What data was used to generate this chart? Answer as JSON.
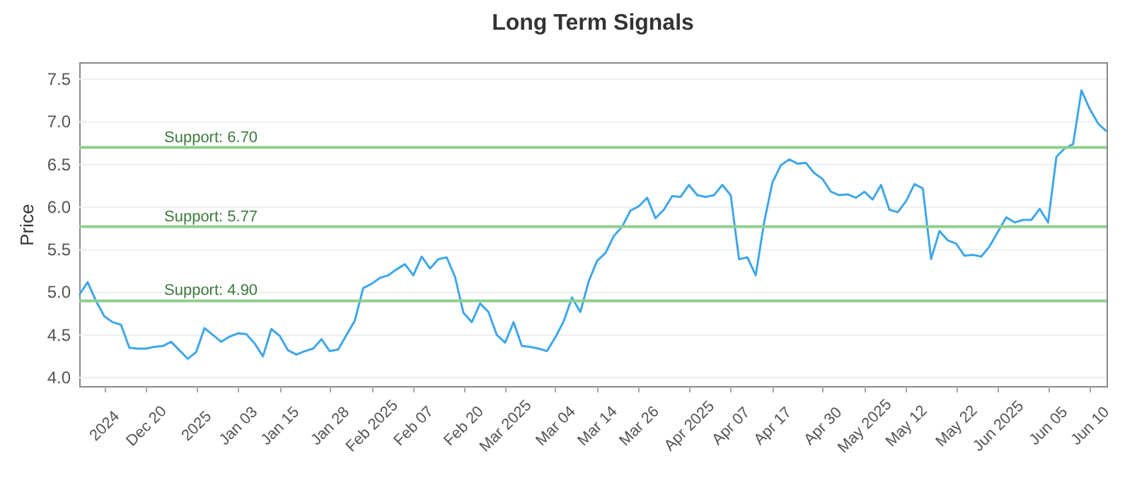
{
  "chart_data": {
    "type": "line",
    "title": "Long Term Signals",
    "ylabel": "Price",
    "categories": [
      null,
      null,
      null,
      "2024",
      null,
      null,
      null,
      null,
      "Dec 20",
      null,
      null,
      null,
      null,
      null,
      "2025",
      null,
      null,
      null,
      null,
      "Jan 03",
      null,
      null,
      null,
      null,
      "Jan 15",
      null,
      null,
      null,
      null,
      null,
      "Jan 28",
      null,
      null,
      null,
      null,
      "Feb 2025",
      null,
      null,
      null,
      null,
      "Feb 07",
      null,
      null,
      null,
      null,
      null,
      "Feb 20",
      null,
      null,
      null,
      null,
      "Mar 2025",
      null,
      null,
      null,
      null,
      null,
      "Mar 04",
      null,
      null,
      null,
      null,
      "Mar 14",
      null,
      null,
      null,
      null,
      "Mar 26",
      null,
      null,
      null,
      null,
      null,
      "Apr 2025",
      null,
      null,
      null,
      null,
      "Apr 07",
      null,
      null,
      null,
      null,
      "Apr 17",
      null,
      null,
      null,
      null,
      null,
      "Apr 30",
      null,
      null,
      null,
      null,
      "May 2025",
      null,
      null,
      null,
      null,
      "May 12",
      null,
      null,
      null,
      null,
      null,
      "May 22",
      null,
      null,
      null,
      null,
      "Jun 2025",
      null,
      null,
      null,
      null,
      null,
      "Jun 05",
      null,
      null,
      null,
      null,
      "Jun 10",
      null,
      null
    ],
    "series": [
      {
        "color": "#3ea6ea",
        "values": [
          4.97,
          5.12,
          4.9,
          4.72,
          4.65,
          4.62,
          4.35,
          4.34,
          4.34,
          4.36,
          4.37,
          4.42,
          4.32,
          4.22,
          4.3,
          4.58,
          4.5,
          4.42,
          4.48,
          4.52,
          4.51,
          4.4,
          4.25,
          4.57,
          4.49,
          4.32,
          4.27,
          4.31,
          4.34,
          4.45,
          4.31,
          4.33,
          4.5,
          4.67,
          5.05,
          5.1,
          5.17,
          5.2,
          5.27,
          5.33,
          5.2,
          5.42,
          5.28,
          5.39,
          5.41,
          5.18,
          4.76,
          4.65,
          4.87,
          4.77,
          4.5,
          4.41,
          4.65,
          4.37,
          4.36,
          4.34,
          4.31,
          4.47,
          4.66,
          4.94,
          4.77,
          5.13,
          5.37,
          5.46,
          5.66,
          5.77,
          5.96,
          6.01,
          6.11,
          5.87,
          5.97,
          6.13,
          6.12,
          6.26,
          6.14,
          6.12,
          6.14,
          6.26,
          6.14,
          5.39,
          5.41,
          5.2,
          5.82,
          6.29,
          6.49,
          6.56,
          6.51,
          6.52,
          6.4,
          6.33,
          6.18,
          6.14,
          6.15,
          6.11,
          6.18,
          6.09,
          6.26,
          5.97,
          5.94,
          6.07,
          6.27,
          6.22,
          5.39,
          5.72,
          5.61,
          5.57,
          5.43,
          5.44,
          5.42,
          5.54,
          5.71,
          5.88,
          5.82,
          5.85,
          5.85,
          5.98,
          5.82,
          6.59,
          6.69,
          6.74,
          7.37,
          7.15,
          6.98,
          6.89
        ]
      }
    ],
    "ylim": [
      3.9,
      7.7
    ],
    "yticks": [
      {
        "value": 4,
        "label": "4.0"
      },
      {
        "value": 4.5,
        "label": "4.5"
      },
      {
        "value": 5,
        "label": "5.0"
      },
      {
        "value": 5.5,
        "label": "5.5"
      },
      {
        "value": 6,
        "label": "6.0"
      },
      {
        "value": 6.5,
        "label": "6.5"
      },
      {
        "value": 7,
        "label": "7.0"
      },
      {
        "value": 7.5,
        "label": "7.5"
      }
    ],
    "grid": "y",
    "marker": "none",
    "line_style": "solid",
    "ref_lines": [
      {
        "axis": "y",
        "value": 6.7,
        "label": "Support: 6.70",
        "color": "#8fce8f"
      },
      {
        "axis": "y",
        "value": 5.77,
        "label": "Support: 5.77",
        "color": "#8fce8f"
      },
      {
        "axis": "y",
        "value": 4.9,
        "label": "Support: 4.90",
        "color": "#8fce8f"
      }
    ]
  }
}
